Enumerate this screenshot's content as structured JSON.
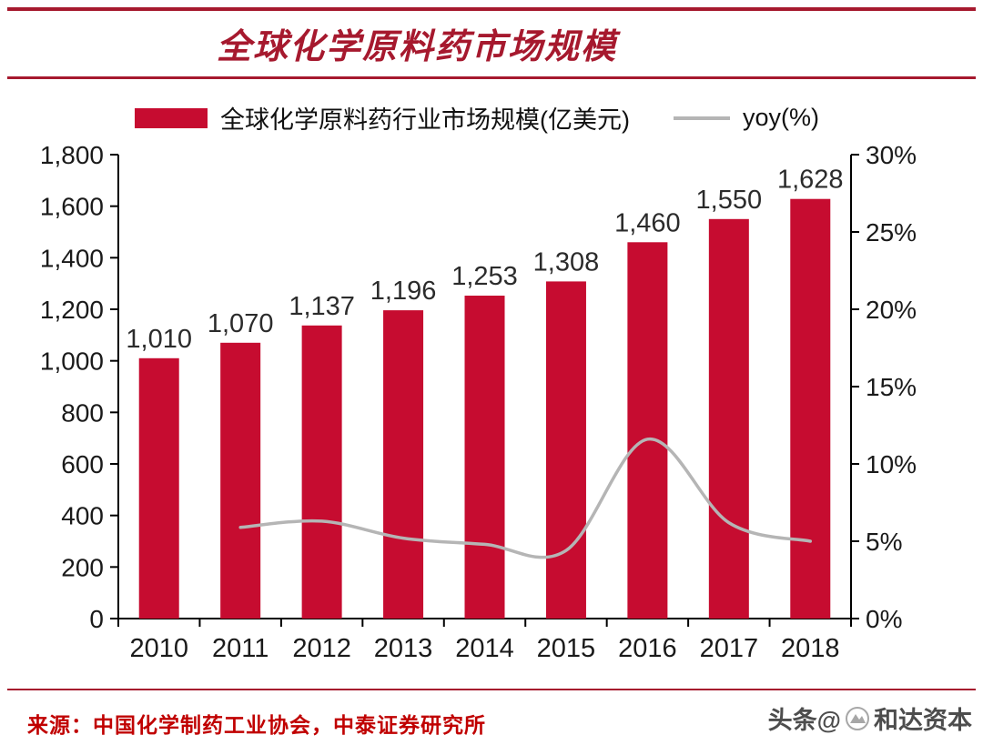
{
  "header": {
    "title": "全球化学原料药市场规模"
  },
  "legend": {
    "bar_label": "全球化学原料药行业市场规模(亿美元)",
    "line_label": "yoy(%)"
  },
  "chart_data": {
    "type": "bar",
    "title": "全球化学原料药市场规模",
    "categories": [
      "2010",
      "2011",
      "2012",
      "2013",
      "2014",
      "2015",
      "2016",
      "2017",
      "2018"
    ],
    "series": [
      {
        "name": "全球化学原料药行业市场规模(亿美元)",
        "type": "bar",
        "axis": "left",
        "color": "#c60c30",
        "values": [
          1010,
          1070,
          1137,
          1196,
          1253,
          1308,
          1460,
          1550,
          1628
        ],
        "labels": [
          "1,010",
          "1,070",
          "1,137",
          "1,196",
          "1,253",
          "1,308",
          "1,460",
          "1,550",
          "1,628"
        ]
      },
      {
        "name": "yoy(%)",
        "type": "line",
        "axis": "right",
        "color": "#b5b5b5",
        "values": [
          null,
          5.9,
          6.3,
          5.2,
          4.8,
          4.4,
          11.6,
          6.2,
          5.0
        ]
      }
    ],
    "left_axis": {
      "min": 0,
      "max": 1800,
      "tick_labels": [
        "0",
        "200",
        "400",
        "600",
        "800",
        "1,000",
        "1,200",
        "1,400",
        "1,600",
        "1,800"
      ]
    },
    "right_axis": {
      "min": 0,
      "max": 30,
      "tick_labels": [
        "0%",
        "5%",
        "10%",
        "15%",
        "20%",
        "25%",
        "30%"
      ]
    },
    "grid": false,
    "legend_position": "top"
  },
  "footer": {
    "source": "来源：中国化学制药工业协会，中泰证券研究所",
    "watermark_prefix": "头条@",
    "watermark_name": "和达资本"
  },
  "colors": {
    "bar": "#c60c30",
    "line": "#b5b5b5",
    "accent_red": "#a6192e",
    "source_red": "#c00000",
    "axis": "#000000",
    "tick_text": "#1a1a1a",
    "value_label": "#2b2b2b"
  }
}
